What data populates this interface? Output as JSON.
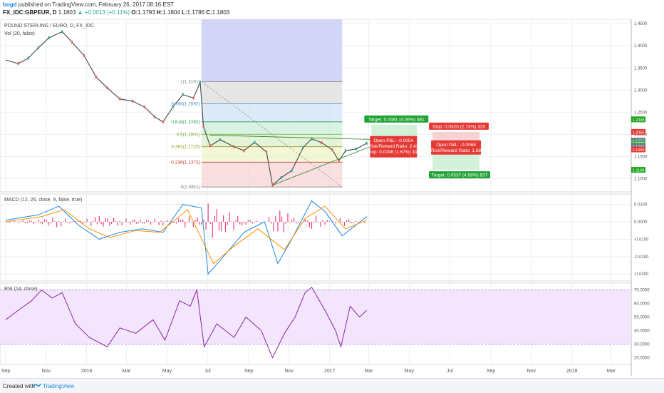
{
  "header": {
    "author": "bogd",
    "published_text": "published on TradingView.com, February 26, 2017 08:16 EST",
    "symbol": "FX_IDC:GBPEUR, D",
    "last": "1.1803",
    "change": "▲ +0.0013 (+0.11%)",
    "open_label": "O:",
    "open": "1.1793",
    "high_label": "H:",
    "high": "1.1804",
    "low_label": "L:",
    "low": "1.1786",
    "close_label": "C:",
    "close": "1.1803"
  },
  "footer": {
    "created_with": "Created with",
    "brand": "TradingView"
  },
  "chart_data": [
    {
      "type": "line",
      "name": "price",
      "title": "POUND STERLING / EURO, D, FX_IDC",
      "volume_label": "Vol (20, false)",
      "ylim": [
        1.07,
        1.46
      ],
      "y_ticks": [
        "1.4500",
        "1.4000",
        "1.3500",
        "1.3000",
        "1.2500",
        "1.2000",
        "1.1500",
        "1.1000"
      ],
      "x_ticks": [
        "Sep",
        "Nov",
        "2016",
        "Mar",
        "May",
        "Jul",
        "Sep",
        "Nov",
        "2017",
        "Mar",
        "May",
        "Jul",
        "Sep",
        "Nov",
        "2018",
        "Mar"
      ],
      "x_range": [
        "2015-09",
        "2018-03"
      ],
      "price_path": [
        [
          "2015-09-01",
          1.368
        ],
        [
          "2015-09-20",
          1.36
        ],
        [
          "2015-10-05",
          1.372
        ],
        [
          "2015-10-20",
          1.395
        ],
        [
          "2015-11-05",
          1.418
        ],
        [
          "2015-11-25",
          1.432
        ],
        [
          "2015-12-10",
          1.408
        ],
        [
          "2015-12-28",
          1.378
        ],
        [
          "2016-01-15",
          1.33
        ],
        [
          "2016-02-01",
          1.305
        ],
        [
          "2016-02-20",
          1.28
        ],
        [
          "2016-03-10",
          1.275
        ],
        [
          "2016-03-28",
          1.262
        ],
        [
          "2016-04-12",
          1.24
        ],
        [
          "2016-04-25",
          1.228
        ],
        [
          "2016-05-10",
          1.262
        ],
        [
          "2016-05-25",
          1.29
        ],
        [
          "2016-06-10",
          1.282
        ],
        [
          "2016-06-20",
          1.318
        ],
        [
          "2016-06-25",
          1.218
        ],
        [
          "2016-07-05",
          1.174
        ],
        [
          "2016-07-20",
          1.188
        ],
        [
          "2016-08-10",
          1.172
        ],
        [
          "2016-08-25",
          1.163
        ],
        [
          "2016-09-10",
          1.182
        ],
        [
          "2016-09-28",
          1.16
        ],
        [
          "2016-10-07",
          1.085
        ],
        [
          "2016-10-20",
          1.102
        ],
        [
          "2016-11-05",
          1.118
        ],
        [
          "2016-11-22",
          1.17
        ],
        [
          "2016-12-05",
          1.19
        ],
        [
          "2016-12-20",
          1.181
        ],
        [
          "2017-01-05",
          1.165
        ],
        [
          "2017-01-15",
          1.14
        ],
        [
          "2017-01-25",
          1.163
        ],
        [
          "2017-02-10",
          1.167
        ],
        [
          "2017-02-26",
          1.18
        ]
      ],
      "fibonacci": {
        "levels": [
          {
            "label": "1(1.3191)",
            "value": 1.3191
          },
          {
            "label": "0.786(1.2692)",
            "value": 1.2692
          },
          {
            "label": "0.618(1.2282)",
            "value": 1.2282
          },
          {
            "label": "0.5(1.2001)",
            "value": 1.2001
          },
          {
            "label": "0.382(1.1720)",
            "value": 1.172
          },
          {
            "label": "0.236(1.1372)",
            "value": 1.1372
          },
          {
            "label": "0(1.0811)",
            "value": 1.0811
          }
        ]
      },
      "position_long": {
        "target": "Target: 0.0481 (4.06%) 481",
        "open_pnl": "Open P&L: -0.0054",
        "rr": "Risk/Reward Ratio: 2.43",
        "stop": "Stop: 0.0198 (1.67%) 198"
      },
      "position_short": {
        "stop": "Stop: 0.0320 (2.73%) 320",
        "open_pnl": "Open P&L: -0.0068",
        "rr": "Risk/Reward Ratio: 1.68",
        "target": "Target: 0.0537 (4.58%) 537"
      },
      "price_tags": [
        {
          "value": "1.2338",
          "color": "#1aa51a"
        },
        {
          "value": "1.2055",
          "color": "#e53935"
        },
        {
          "value": "1.1857",
          "color": "#607d8b"
        },
        {
          "value": "1.1803",
          "color": "#4caf50"
        },
        {
          "value": "1.1735",
          "color": "#607d8b"
        },
        {
          "value": "1.1659",
          "color": "#e53935"
        },
        {
          "value": "1.1198",
          "color": "#1aa51a"
        }
      ]
    },
    {
      "type": "line",
      "name": "macd",
      "title": "MACD (12, 26, close, 9, false, true)",
      "ylim": [
        -0.034,
        0.016
      ],
      "y_ticks": [
        "0.0100",
        "0.0000",
        "-0.0100",
        "-0.0200",
        "-0.0300"
      ],
      "macd_path": [
        [
          "2015-09-01",
          0.001
        ],
        [
          "2015-10-20",
          0.004
        ],
        [
          "2015-11-20",
          0.009
        ],
        [
          "2015-12-20",
          -0.002
        ],
        [
          "2016-01-20",
          -0.01
        ],
        [
          "2016-02-20",
          -0.006
        ],
        [
          "2016-03-25",
          -0.004
        ],
        [
          "2016-04-25",
          -0.006
        ],
        [
          "2016-05-25",
          0.01
        ],
        [
          "2016-06-22",
          0.008
        ],
        [
          "2016-07-02",
          -0.03
        ],
        [
          "2016-07-25",
          -0.02
        ],
        [
          "2016-08-25",
          -0.006
        ],
        [
          "2016-09-25",
          0.0
        ],
        [
          "2016-10-15",
          -0.024
        ],
        [
          "2016-11-05",
          -0.01
        ],
        [
          "2016-12-05",
          0.012
        ],
        [
          "2016-12-25",
          0.006
        ],
        [
          "2017-01-20",
          -0.008
        ],
        [
          "2017-02-26",
          0.003
        ]
      ],
      "signal_path": [
        [
          "2015-09-01",
          0.0
        ],
        [
          "2015-10-25",
          0.003
        ],
        [
          "2015-11-28",
          0.007
        ],
        [
          "2016-01-05",
          -0.004
        ],
        [
          "2016-02-05",
          -0.009
        ],
        [
          "2016-03-15",
          -0.005
        ],
        [
          "2016-04-20",
          -0.006
        ],
        [
          "2016-06-01",
          0.007
        ],
        [
          "2016-07-10",
          -0.024
        ],
        [
          "2016-08-10",
          -0.014
        ],
        [
          "2016-09-15",
          -0.004
        ],
        [
          "2016-10-25",
          -0.016
        ],
        [
          "2016-11-25",
          0.002
        ],
        [
          "2016-12-25",
          0.009
        ],
        [
          "2017-01-25",
          -0.004
        ],
        [
          "2017-02-26",
          0.001
        ]
      ],
      "colors": {
        "macd": "#1e88e5",
        "signal": "#ff8f00",
        "hist": "#ec407a"
      }
    },
    {
      "type": "line",
      "name": "rsi",
      "title": "RSI (14, close)",
      "ylim": [
        15,
        75
      ],
      "band": [
        30,
        70
      ],
      "y_ticks": [
        "70.0000",
        "60.0000",
        "50.0000",
        "40.0000",
        "30.0000",
        "20.0000"
      ],
      "rsi_path": [
        [
          "2015-09-01",
          48
        ],
        [
          "2015-09-20",
          55
        ],
        [
          "2015-10-10",
          62
        ],
        [
          "2015-10-25",
          70
        ],
        [
          "2015-11-10",
          64
        ],
        [
          "2015-11-25",
          68
        ],
        [
          "2015-12-15",
          45
        ],
        [
          "2016-01-05",
          35
        ],
        [
          "2016-02-01",
          28
        ],
        [
          "2016-02-20",
          42
        ],
        [
          "2016-03-15",
          38
        ],
        [
          "2016-04-10",
          48
        ],
        [
          "2016-04-28",
          33
        ],
        [
          "2016-05-20",
          62
        ],
        [
          "2016-06-05",
          58
        ],
        [
          "2016-06-15",
          70
        ],
        [
          "2016-06-26",
          28
        ],
        [
          "2016-07-15",
          45
        ],
        [
          "2016-08-10",
          35
        ],
        [
          "2016-08-28",
          50
        ],
        [
          "2016-09-20",
          40
        ],
        [
          "2016-10-07",
          20
        ],
        [
          "2016-10-25",
          38
        ],
        [
          "2016-11-10",
          50
        ],
        [
          "2016-11-25",
          68
        ],
        [
          "2016-12-05",
          72
        ],
        [
          "2016-12-25",
          55
        ],
        [
          "2017-01-10",
          40
        ],
        [
          "2017-01-18",
          28
        ],
        [
          "2017-02-01",
          58
        ],
        [
          "2017-02-15",
          50
        ],
        [
          "2017-02-26",
          55
        ]
      ],
      "colors": {
        "line": "#8e24aa",
        "band": "#f3e5fb"
      }
    }
  ],
  "colors": {
    "grid": "#eceff1",
    "candle_up": "#26a69a",
    "candle_down": "#ef5350",
    "range": "#c5c8f5",
    "brand": "#1e88e5"
  }
}
